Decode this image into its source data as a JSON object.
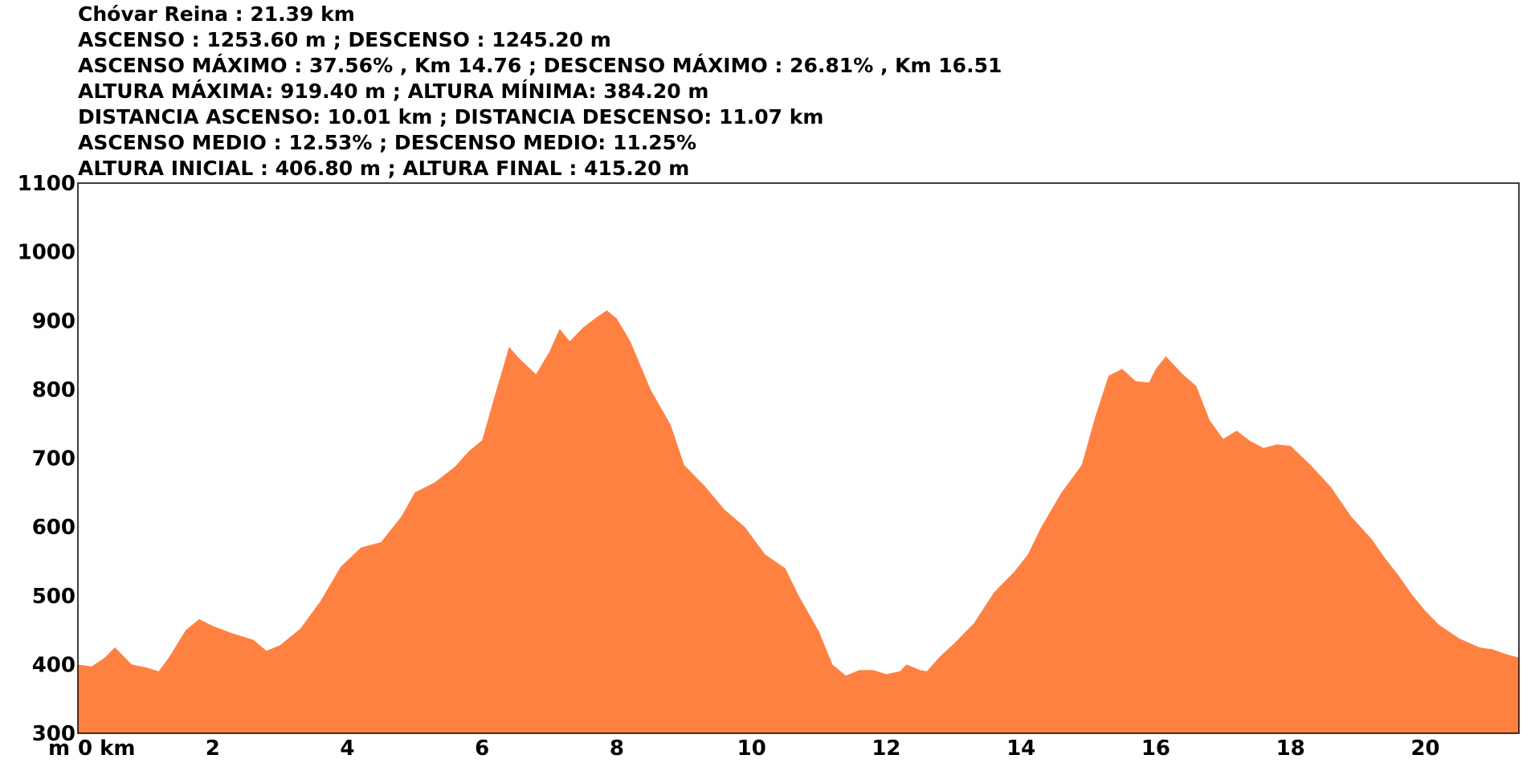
{
  "stats": {
    "title": "Chóvar Reina : 21.39 km",
    "line1": "ASCENSO : 1253.60 m ; DESCENSO : 1245.20 m",
    "line2": "ASCENSO MÁXIMO : 37.56% , Km 14.76 ; DESCENSO MÁXIMO : 26.81% , Km 16.51",
    "line3": "ALTURA MÁXIMA: 919.40 m ; ALTURA MÍNIMA: 384.20 m",
    "line4": "DISTANCIA ASCENSO: 10.01 km ; DISTANCIA DESCENSO: 11.07 km",
    "line5": "ASCENSO MEDIO : 12.53% ; DESCENSO MEDIO: 11.25%",
    "line6": "ALTURA INICIAL : 406.80 m ; ALTURA FINAL : 415.20 m"
  },
  "colors": {
    "fill": "#ff8142",
    "frame": "#000000",
    "background": "#ffffff"
  },
  "chart_data": {
    "type": "area",
    "xlabel": "km",
    "ylabel": "m",
    "xlim": [
      0,
      21.39
    ],
    "ylim": [
      300,
      1100
    ],
    "x_ticks": [
      0,
      2,
      4,
      6,
      8,
      10,
      12,
      14,
      16,
      18,
      20
    ],
    "x_tick_labels": [
      "0 km",
      "2",
      "4",
      "6",
      "8",
      "10",
      "12",
      "14",
      "16",
      "18",
      "20"
    ],
    "y_ticks": [
      300,
      400,
      500,
      600,
      700,
      800,
      900,
      1000,
      1100
    ],
    "y_tick_labels": [
      "300",
      "400",
      "500",
      "600",
      "700",
      "800",
      "900",
      "1000",
      "1100"
    ],
    "x": [
      0,
      0.2,
      0.4,
      0.55,
      0.8,
      1.0,
      1.2,
      1.35,
      1.6,
      1.8,
      2.0,
      2.3,
      2.6,
      2.8,
      3.0,
      3.3,
      3.6,
      3.9,
      4.2,
      4.5,
      4.8,
      5.0,
      5.3,
      5.6,
      5.8,
      6.0,
      6.2,
      6.4,
      6.55,
      6.8,
      7.0,
      7.15,
      7.3,
      7.5,
      7.7,
      7.85,
      8.0,
      8.2,
      8.5,
      8.8,
      9.0,
      9.3,
      9.6,
      9.9,
      10.2,
      10.5,
      10.7,
      11.0,
      11.2,
      11.4,
      11.6,
      11.8,
      12.0,
      12.2,
      12.3,
      12.5,
      12.6,
      12.8,
      13.0,
      13.3,
      13.6,
      13.9,
      14.1,
      14.3,
      14.6,
      14.9,
      15.1,
      15.3,
      15.5,
      15.7,
      15.9,
      16.0,
      16.15,
      16.4,
      16.6,
      16.8,
      17.0,
      17.2,
      17.4,
      17.6,
      17.8,
      18.0,
      18.3,
      18.6,
      18.9,
      19.2,
      19.4,
      19.6,
      19.8,
      20.0,
      20.2,
      20.5,
      20.8,
      21.0,
      21.2,
      21.39
    ],
    "values": [
      400,
      397,
      410,
      425,
      400,
      396,
      390,
      410,
      450,
      466,
      456,
      445,
      436,
      420,
      428,
      452,
      492,
      542,
      570,
      578,
      615,
      650,
      665,
      688,
      710,
      726,
      795,
      862,
      845,
      822,
      855,
      888,
      870,
      890,
      905,
      915,
      903,
      870,
      800,
      748,
      690,
      660,
      625,
      600,
      560,
      540,
      500,
      448,
      400,
      384,
      392,
      392,
      386,
      390,
      400,
      392,
      390,
      412,
      430,
      460,
      505,
      535,
      560,
      600,
      650,
      690,
      760,
      820,
      830,
      812,
      810,
      830,
      848,
      822,
      805,
      755,
      728,
      740,
      725,
      715,
      720,
      718,
      690,
      658,
      615,
      583,
      555,
      530,
      502,
      478,
      458,
      438,
      425,
      422,
      415,
      410
    ]
  }
}
